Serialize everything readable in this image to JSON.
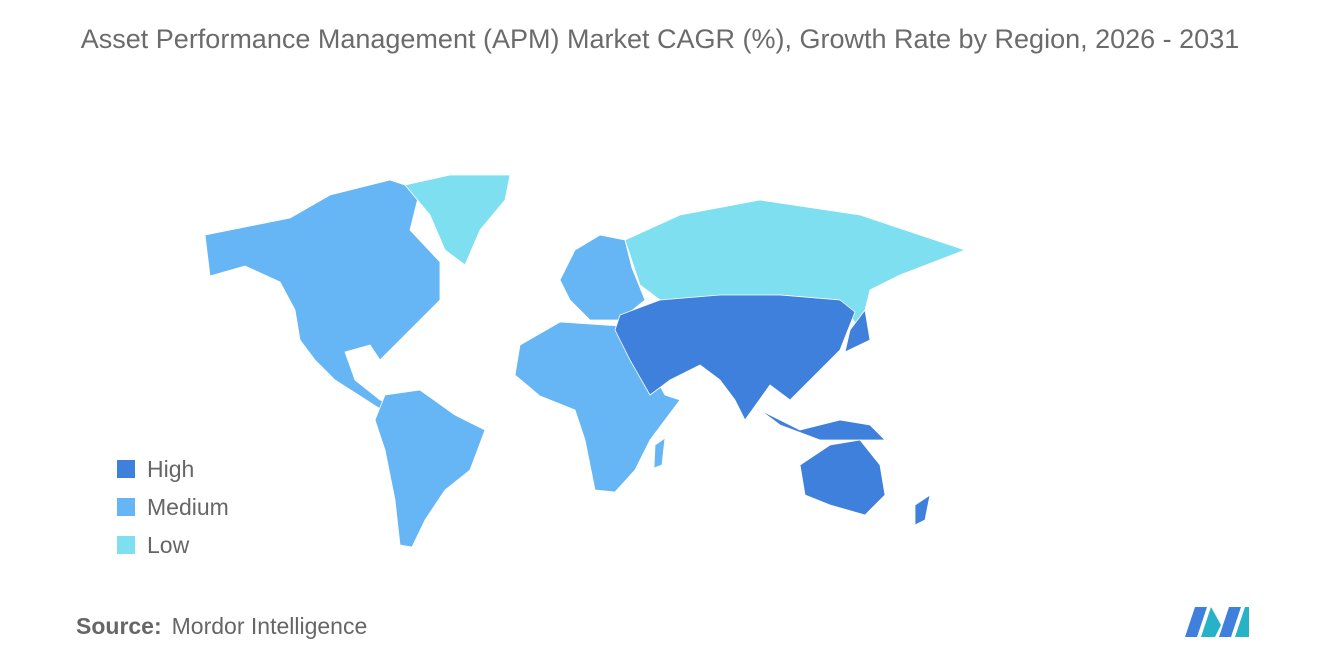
{
  "title": "Asset Performance Management (APM) Market CAGR (%), Growth Rate by Region, 2026 - 2031",
  "legend": [
    {
      "label": "High",
      "color": "#3f80dc"
    },
    {
      "label": "Medium",
      "color": "#66b6f6"
    },
    {
      "label": "Low",
      "color": "#7ddff0"
    }
  ],
  "source": {
    "label": "Source:",
    "text": "Mordor Intelligence"
  }
}
